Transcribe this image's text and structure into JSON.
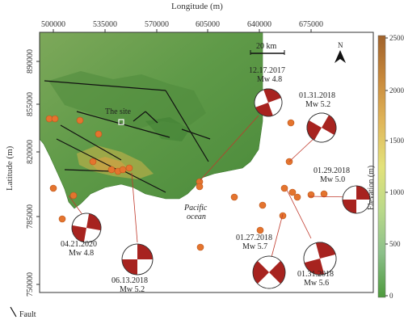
{
  "x_axis": {
    "title": "Longitude (m)",
    "ticks": [
      "500000",
      "535000",
      "570000",
      "605000",
      "640000",
      "675000"
    ]
  },
  "y_axis": {
    "title": "Latitude (m)",
    "ticks": [
      "890000",
      "855000",
      "820000",
      "785000",
      "750000"
    ]
  },
  "elevation_bar": {
    "title": "Elevation (m)",
    "ticks": [
      "2500",
      "2000",
      "1500",
      "1000",
      "500",
      "0"
    ],
    "colors": [
      "#4d9a3c",
      "#8cc08a",
      "#b9d98a",
      "#e3e27a",
      "#e0b65a",
      "#c98a3c",
      "#a0622b"
    ]
  },
  "scale_bar": {
    "label": "20 km"
  },
  "north_arrow": {
    "label": "N"
  },
  "site_label": "The site",
  "ocean_label": [
    "Pacific",
    "ocean"
  ],
  "legend": {
    "fault_label": "Fault"
  },
  "events": [
    {
      "date": "12.17.2017",
      "mw": "Mw 4.8"
    },
    {
      "date": "01.31.2018",
      "mw": "Mw 5.2"
    },
    {
      "date": "01.29.2018",
      "mw": "Mw 5.0"
    },
    {
      "date": "01.27.2018",
      "mw": "Mw 5.7"
    },
    {
      "date": "01.31.2018",
      "mw": "Mw 5.6"
    },
    {
      "date": "06.13.2018",
      "mw": "Mw 5.2"
    },
    {
      "date": "04.21.2020",
      "mw": "Mw 4.8"
    }
  ],
  "colors": {
    "epicenter": "#e4742e",
    "beachball": "#a7231f",
    "sea": "#ffffff",
    "fault": "#111111",
    "leader": "#c0392b"
  }
}
